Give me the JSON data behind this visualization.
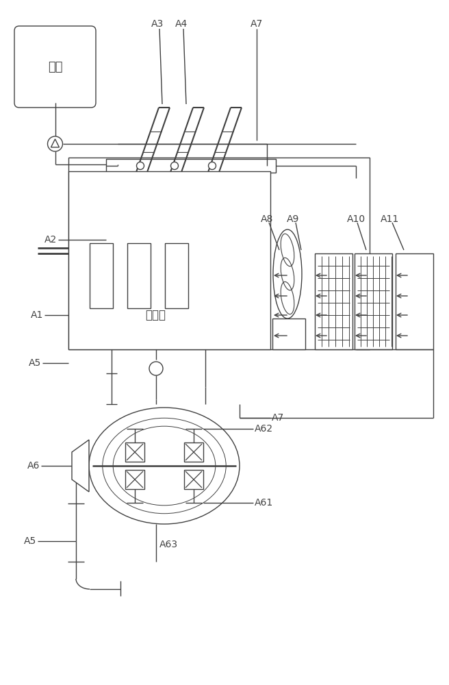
{
  "bg_color": "#ffffff",
  "line_color": "#404040",
  "labels": {
    "youtank": "油箱",
    "engine": "发动机",
    "A1": "A1",
    "A2": "A2",
    "A3": "A3",
    "A4": "A4",
    "A5a": "A5",
    "A5b": "A5",
    "A6": "A6",
    "A7a": "A7",
    "A7b": "A7",
    "A8": "A8",
    "A9": "A9",
    "A10": "A10",
    "A11": "A11",
    "A61": "A61",
    "A62": "A62",
    "A63": "A63"
  },
  "font_size": 10
}
